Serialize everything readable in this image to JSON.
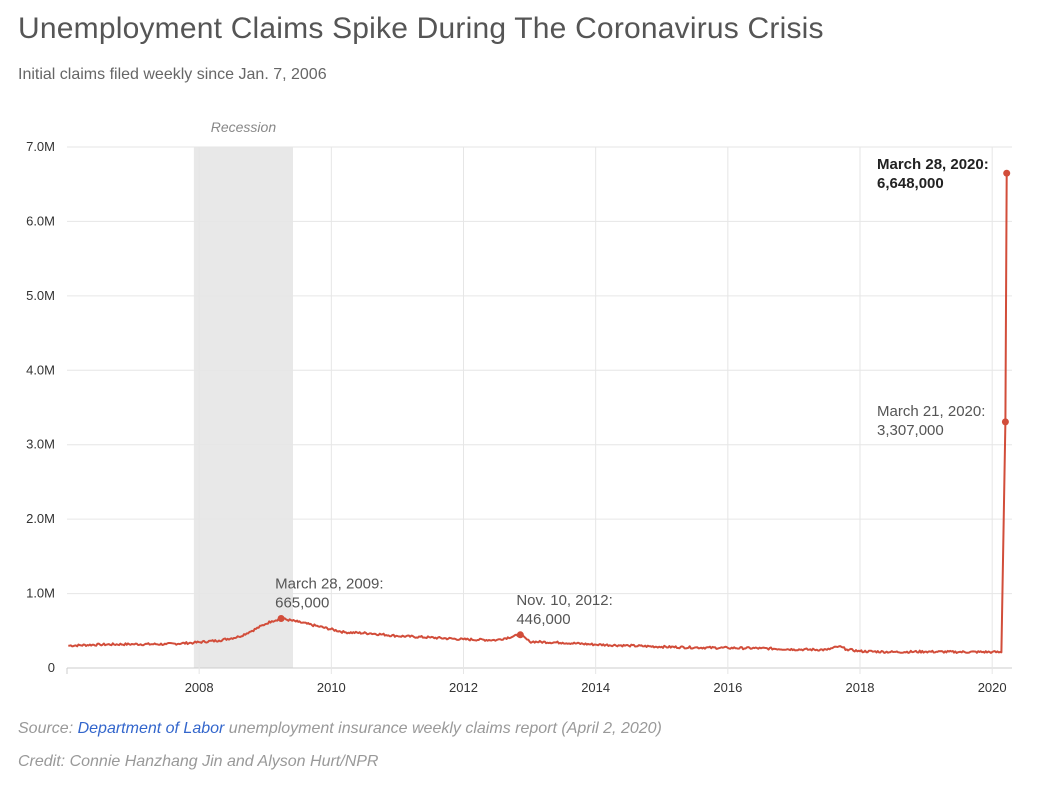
{
  "header": {
    "title": "Unemployment Claims Spike During The Coronavirus Crisis",
    "subtitle": "Initial claims filed weekly since Jan. 7, 2006"
  },
  "footer": {
    "source_prefix": "Source: ",
    "source_link": "Department of Labor",
    "source_suffix": " unemployment insurance weekly claims report (April 2, 2020)",
    "credit": "Credit: Connie Hanzhang Jin and Alyson Hurt/NPR"
  },
  "colors": {
    "line": "#d24d3a",
    "recession": "#e8e8e8",
    "grid": "#e6e6e6"
  },
  "chart_data": {
    "type": "line",
    "title": "Unemployment Claims Spike During The Coronavirus Crisis",
    "subtitle": "Initial claims filed weekly since Jan. 7, 2006",
    "xlabel": "",
    "ylabel": "",
    "xlim": [
      2006.0,
      2020.3
    ],
    "ylim": [
      0,
      7000000
    ],
    "y_ticks": [
      0,
      1000000,
      2000000,
      3000000,
      4000000,
      5000000,
      6000000,
      7000000
    ],
    "y_tick_labels": [
      "0",
      "1.0M",
      "2.0M",
      "3.0M",
      "4.0M",
      "5.0M",
      "6.0M",
      "7.0M"
    ],
    "x_ticks": [
      2008,
      2010,
      2012,
      2014,
      2016,
      2018,
      2020
    ],
    "x_tick_labels": [
      "2008",
      "2010",
      "2012",
      "2014",
      "2016",
      "2018",
      "2020"
    ],
    "grid": true,
    "shaded_regions": [
      {
        "label": "Recession",
        "x_start": 2007.92,
        "x_end": 2009.42
      }
    ],
    "series": [
      {
        "name": "Initial claims",
        "x": [
          2006.02,
          2006.5,
          2007.0,
          2007.5,
          2007.92,
          2008.3,
          2008.6,
          2008.8,
          2009.0,
          2009.1,
          2009.24,
          2009.5,
          2009.8,
          2010.2,
          2010.6,
          2011.0,
          2011.5,
          2012.0,
          2012.5,
          2012.86,
          2013.0,
          2013.5,
          2014.0,
          2014.5,
          2015.0,
          2015.5,
          2016.0,
          2016.5,
          2017.0,
          2017.5,
          2017.68,
          2017.8,
          2018.0,
          2018.5,
          2019.0,
          2019.5,
          2020.0,
          2020.14,
          2020.2,
          2020.22
        ],
        "values": [
          300000,
          315000,
          320000,
          320000,
          340000,
          370000,
          420000,
          500000,
          590000,
          630000,
          665000,
          620000,
          560000,
          480000,
          465000,
          430000,
          410000,
          385000,
          375000,
          446000,
          355000,
          340000,
          315000,
          300000,
          285000,
          275000,
          270000,
          265000,
          250000,
          245000,
          290000,
          250000,
          225000,
          215000,
          220000,
          215000,
          215000,
          211000,
          3307000,
          6648000
        ]
      }
    ],
    "annotations": [
      {
        "label": "March 28, 2009:",
        "value_label": "665,000",
        "x": 2009.24,
        "y": 665000,
        "bold": false
      },
      {
        "label": "Nov. 10, 2012:",
        "value_label": "446,000",
        "x": 2012.86,
        "y": 446000,
        "bold": false
      },
      {
        "label": "March 21, 2020:",
        "value_label": "3,307,000",
        "x": 2020.2,
        "y": 3307000,
        "bold": false
      },
      {
        "label": "March 28, 2020:",
        "value_label": "6,648,000",
        "x": 2020.22,
        "y": 6648000,
        "bold": true
      }
    ]
  }
}
